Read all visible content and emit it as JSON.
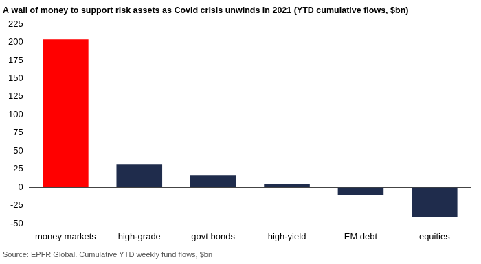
{
  "chart_data": {
    "type": "bar",
    "title": "A wall of money to support risk assets as Covid crisis unwinds in 2021 (YTD cumulative flows, $bn)",
    "source": "Source: EPFR Global. Cumulative YTD weekly fund flows, $bn",
    "categories": [
      "money markets",
      "high-grade",
      "govt bonds",
      "high-yield",
      "EM debt",
      "equities"
    ],
    "values": [
      204,
      32,
      17,
      5,
      -11,
      -41
    ],
    "colors": [
      "#ff0000",
      "#1f2c4c",
      "#1f2c4c",
      "#1f2c4c",
      "#1f2c4c",
      "#1f2c4c"
    ],
    "ylim": [
      -50,
      225
    ],
    "yticks": [
      -50,
      -25,
      0,
      25,
      50,
      75,
      100,
      125,
      150,
      175,
      200,
      225
    ],
    "grid": false
  }
}
